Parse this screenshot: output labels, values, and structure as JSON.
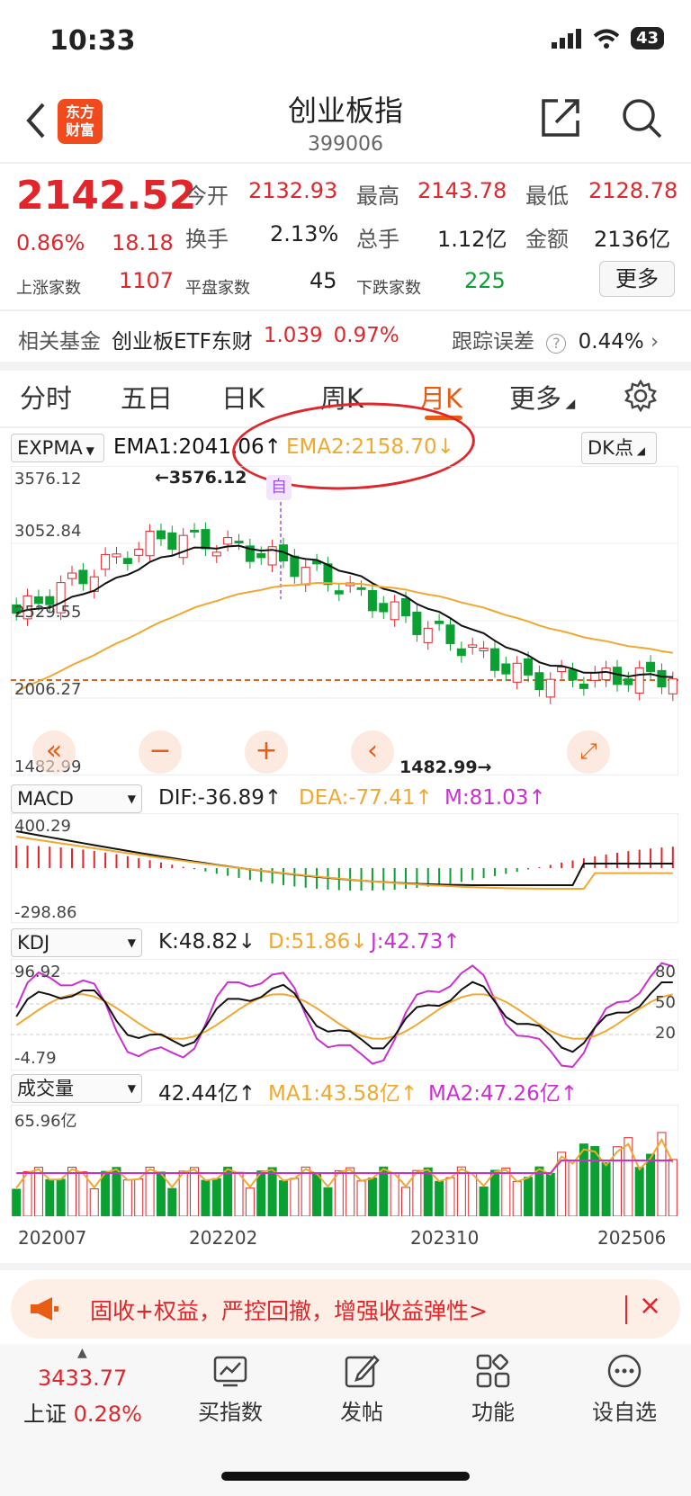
{
  "status": {
    "time": "10:33",
    "battery": "43"
  },
  "header": {
    "title": "创业板指",
    "code": "399006",
    "logo_line1": "东方",
    "logo_line2": "财富"
  },
  "quote": {
    "price": "2142.52",
    "change_pct": "0.86%",
    "change": "18.18",
    "stats": [
      {
        "label": "今开",
        "value": "2132.93",
        "color": "red"
      },
      {
        "label": "最高",
        "value": "2143.78",
        "color": "red"
      },
      {
        "label": "最低",
        "value": "2128.78",
        "color": "red"
      },
      {
        "label": "换手",
        "value": "2.13%",
        "color": "gray"
      },
      {
        "label": "总手",
        "value": "1.12亿",
        "color": "gray"
      },
      {
        "label": "金额",
        "value": "2136亿",
        "color": "gray"
      }
    ],
    "up_label": "上涨家数",
    "up": "1107",
    "flat_label": "平盘家数",
    "flat": "45",
    "down_label": "下跌家数",
    "down": "225",
    "more": "更多"
  },
  "fund": {
    "label": "相关基金",
    "name": "创业板ETF东财",
    "price": "1.039",
    "pct": "0.97%",
    "track_label": "跟踪误差",
    "track": "0.44%"
  },
  "tabs": [
    "分时",
    "五日",
    "日K",
    "周K",
    "月K",
    "更多"
  ],
  "chart": {
    "main": {
      "indicator": "EXPMA",
      "ema1": "EMA1:2041.06",
      "ema1_arrow": "↑",
      "ema2": "EMA2:2158.70",
      "ema2_arrow": "↓",
      "dk": "DK点",
      "y_labels": [
        "3576.12",
        "3052.84",
        "2529.55",
        "2006.27",
        "1482.99"
      ],
      "high_mark": "3576.12",
      "low_mark": "1482.99",
      "ref_line": "2006.27",
      "zi": "自"
    },
    "macd": {
      "indicator": "MACD",
      "dif": "DIF:-36.89",
      "dif_arrow": "↑",
      "dea": "DEA:-77.41",
      "dea_arrow": "↑",
      "m": "M:81.03",
      "m_arrow": "↑",
      "y_top": "400.29",
      "y_bottom": "-298.86"
    },
    "kdj": {
      "indicator": "KDJ",
      "k": "K:48.82",
      "k_arrow": "↓",
      "d": "D:51.86",
      "d_arrow": "↓",
      "j": "J:42.73",
      "j_arrow": "↑",
      "y_top": "96.92",
      "y_bottom": "-4.79",
      "r80": "80",
      "r50": "50",
      "r20": "20"
    },
    "vol": {
      "indicator": "成交量",
      "v": "42.44亿",
      "v_arrow": "↑",
      "ma1": "MA1:43.58亿",
      "ma1_arrow": "↑",
      "ma2": "MA2:47.26亿",
      "ma2_arrow": "↑",
      "y_top": "65.96亿"
    },
    "x_labels": [
      "202007",
      "202202",
      "202310",
      "202506"
    ]
  },
  "chart_data": {
    "type": "candlestick",
    "period": "monthly",
    "ylim": [
      1482.99,
      3576.12
    ],
    "x_labels": [
      "202007",
      "202202",
      "202310",
      "202506"
    ],
    "series": [
      {
        "name": "EMA1",
        "color": "#111111"
      },
      {
        "name": "EMA2",
        "color": "#f0a830"
      }
    ]
  },
  "banner": {
    "text": "固收+权益，严控回撤，增强收益弹性>",
    "close": "×"
  },
  "bottom": {
    "sh_value": "3433.77",
    "sh_label": "上证",
    "sh_pct": "0.28%",
    "items": [
      "买指数",
      "发帖",
      "功能",
      "设自选"
    ]
  }
}
